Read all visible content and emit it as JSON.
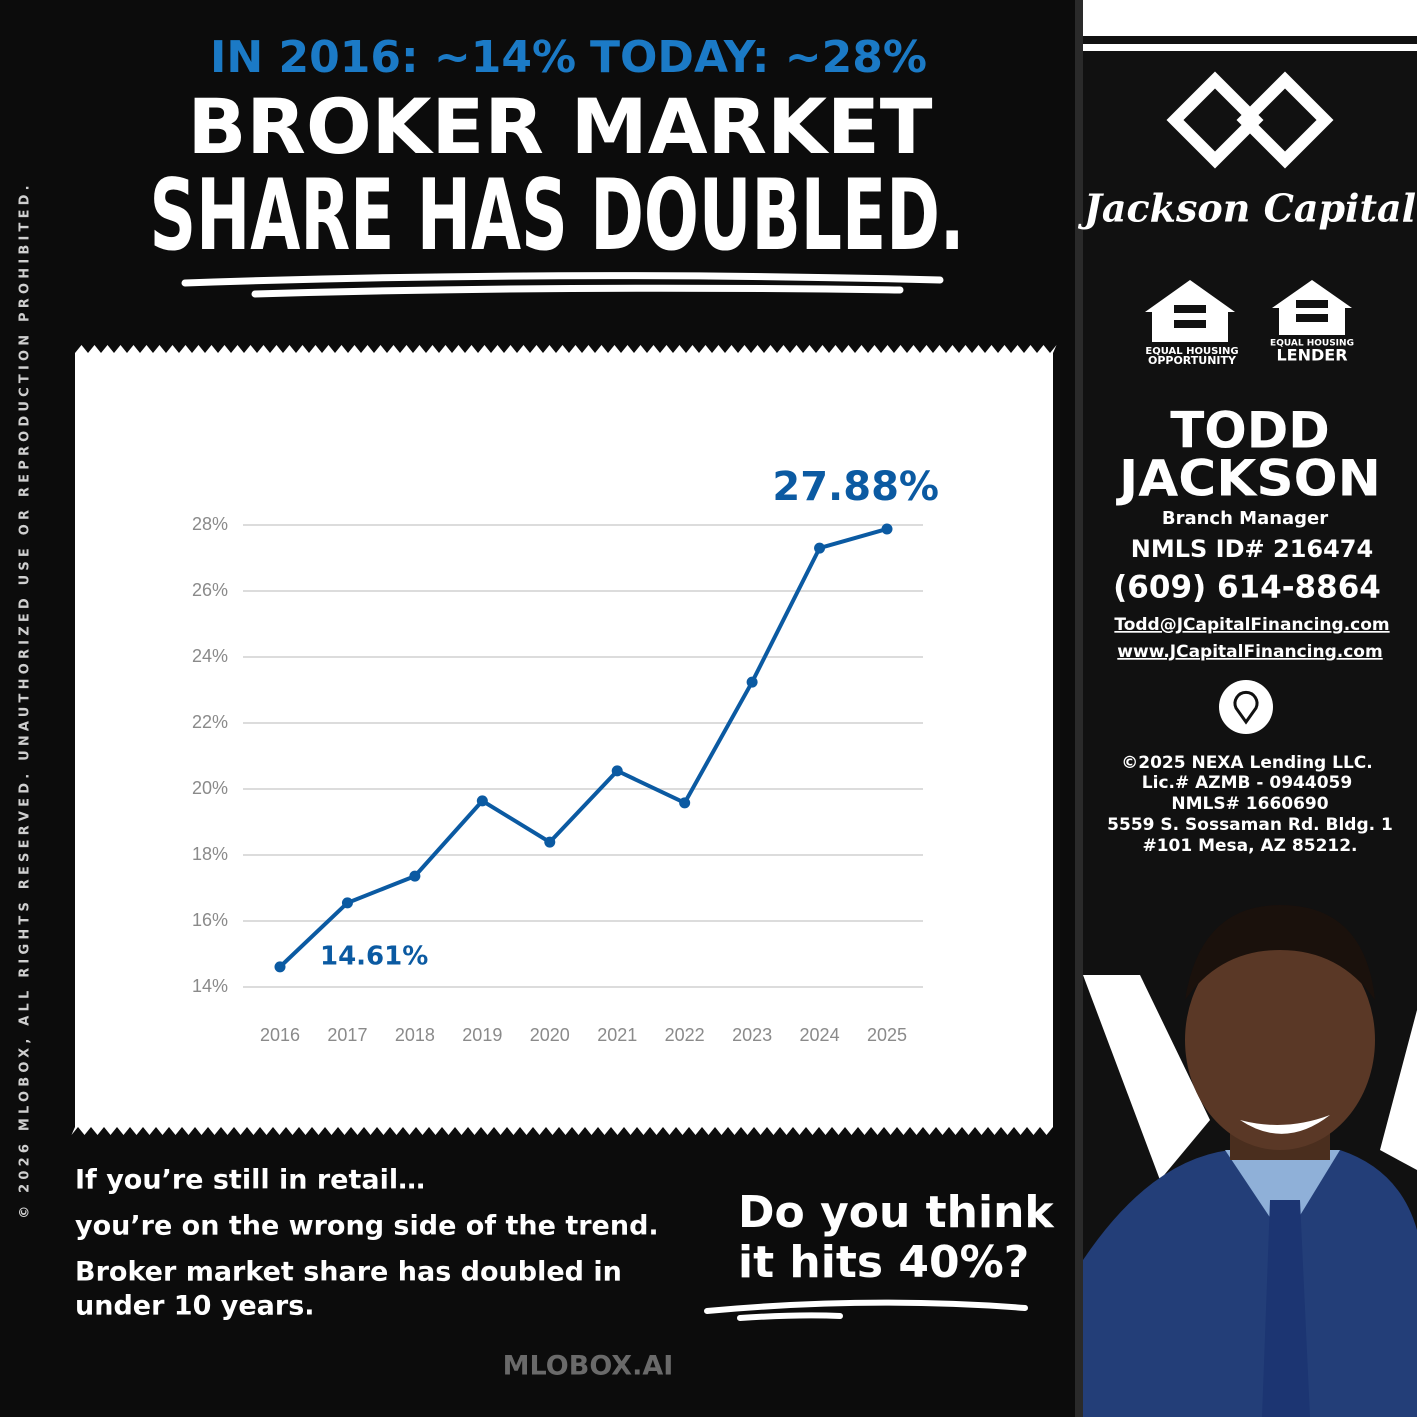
{
  "header": {
    "stat_2016": "IN 2016: ~14%",
    "stat_today": "TODAY: ~28%",
    "title_line1": "BROKER MARKET",
    "title_line2": "SHARE HAS DOUBLED."
  },
  "chart_data": {
    "type": "line",
    "categories": [
      "2016",
      "2017",
      "2018",
      "2019",
      "2020",
      "2021",
      "2022",
      "2023",
      "2024",
      "2025"
    ],
    "series": [
      {
        "color": "#0b5aa2",
        "values": [
          14.61,
          16.55,
          17.36,
          19.64,
          18.39,
          20.55,
          19.58,
          23.24,
          27.3,
          27.88
        ],
        "value_labels": [
          "14.61%",
          null,
          null,
          null,
          null,
          null,
          null,
          null,
          null,
          "27.88%"
        ]
      }
    ],
    "ylim": [
      14,
      28
    ],
    "yticks": [
      {
        "value": 14,
        "label": "14%"
      },
      {
        "value": 16,
        "label": "16%"
      },
      {
        "value": 18,
        "label": "18%"
      },
      {
        "value": 20,
        "label": "20%"
      },
      {
        "value": 22,
        "label": "22%"
      },
      {
        "value": 24,
        "label": "24%"
      },
      {
        "value": 26,
        "label": "26%"
      },
      {
        "value": 28,
        "label": "28%"
      }
    ],
    "grid": true
  },
  "body": {
    "lines": [
      "If you’re still in retail…",
      "you’re on the wrong side of the trend.",
      "Broker market share has doubled in",
      "under 10 years."
    ],
    "question": [
      "Do you think",
      "it hits 40%?"
    ]
  },
  "footer": {
    "watermark": "MLOBOX.AI",
    "copyright": "© 2026 MLOBOX, ALL RIGHTS RESERVED. UNAUTHORIZED USE OR REPRODUCTION PROHIBITED."
  },
  "sidebar": {
    "brand": "Jackson Capital",
    "badges": [
      [
        "EQUAL HOUSING",
        "OPPORTUNITY"
      ],
      [
        "EQUAL HOUSING",
        "LENDER"
      ]
    ],
    "name": [
      "TODD",
      "JACKSON"
    ],
    "role": "Branch Manager",
    "nmls": "NMLS ID# 216474",
    "phone": "(609) 614-8864",
    "email": "Todd@JCapitalFinancing.com",
    "website": "www.JCapitalFinancing.com",
    "license": [
      "©2025 NEXA Lending LLC.",
      "Lic.# AZMB - 0944059",
      "NMLS# 1660690",
      "5559 S. Sossaman Rd. Bldg. 1",
      "#101 Mesa, AZ 85212."
    ]
  }
}
